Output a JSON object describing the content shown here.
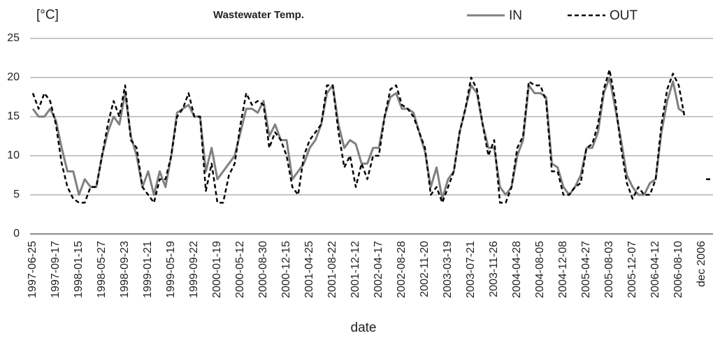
{
  "chart_data": {
    "type": "line",
    "title": "Wastewater Temp.",
    "y_label": "[°C]",
    "x_label": "date",
    "categories": [
      "1997-06-25",
      null,
      null,
      null,
      "1997-09-17",
      null,
      null,
      null,
      "1998-01-15",
      null,
      null,
      null,
      "1998-05-27",
      null,
      null,
      null,
      "1998-09-23",
      null,
      null,
      null,
      "1999-01-21",
      null,
      null,
      null,
      "1999-05-19",
      null,
      null,
      null,
      "1999-09-22",
      null,
      null,
      null,
      "2000-01-19",
      null,
      null,
      null,
      "2000-05-12",
      null,
      null,
      null,
      "2000-08-30",
      null,
      null,
      null,
      "2000-12-15",
      null,
      null,
      null,
      "2001-04-25",
      null,
      null,
      null,
      "2001-08-22",
      null,
      null,
      null,
      "2001-12-12",
      null,
      null,
      null,
      "2002-04-17",
      null,
      null,
      null,
      "2002-08-28",
      null,
      null,
      null,
      "2002-11-20",
      null,
      null,
      null,
      "2003-03-19",
      null,
      null,
      null,
      "2003-07-21",
      null,
      null,
      null,
      "2003-11-26",
      null,
      null,
      null,
      "2004-04-28",
      null,
      null,
      null,
      "2004-08-05",
      null,
      null,
      null,
      "2004-12-08",
      null,
      null,
      null,
      "2005-04-27",
      null,
      null,
      null,
      "2005-08-03",
      null,
      null,
      null,
      "2005-12-07",
      null,
      null,
      null,
      "2006-04-12",
      null,
      null,
      null,
      "2006-08-10",
      null,
      null,
      null,
      "dec 2006"
    ],
    "series": [
      {
        "name": "IN",
        "color": "#808080",
        "dash": false,
        "values": [
          16,
          15,
          15,
          16,
          14.5,
          11,
          8,
          8,
          5,
          7,
          6,
          6,
          10,
          13,
          15,
          14,
          18,
          12.5,
          10,
          6,
          8,
          5,
          8,
          6,
          10,
          15.5,
          16,
          16.5,
          15,
          15,
          8,
          11,
          7,
          8,
          9,
          10,
          13,
          16,
          16,
          15.5,
          17,
          12.5,
          14,
          12,
          12,
          7,
          8,
          9,
          11,
          12,
          14,
          18,
          19,
          14,
          11,
          12,
          11.5,
          9,
          9,
          11,
          11,
          15,
          17.5,
          18,
          16,
          16,
          15.5,
          13,
          10.5,
          6,
          8.5,
          4.5,
          7,
          8,
          13,
          16,
          19,
          18,
          14,
          11,
          11,
          6,
          5,
          6,
          10,
          12,
          19,
          18,
          18,
          17.5,
          9,
          8.5,
          6,
          5,
          6,
          7.5,
          11,
          11,
          13,
          18,
          20,
          16,
          12,
          7.5,
          6,
          5,
          5,
          6.5,
          7,
          13,
          17,
          19.5,
          16,
          15.5,
          null,
          null,
          null
        ]
      },
      {
        "name": "OUT",
        "color": "#000000",
        "dash": true,
        "values": [
          18,
          16,
          18,
          17,
          14,
          9,
          6,
          4.5,
          4,
          4,
          6,
          6,
          10,
          14,
          17,
          15,
          19,
          12,
          11,
          6,
          5,
          4,
          7,
          7,
          10,
          15,
          16,
          18,
          15,
          15,
          5.5,
          9,
          4,
          4,
          7.5,
          9,
          14,
          18,
          16.5,
          17,
          16.5,
          11,
          13,
          12,
          10,
          6,
          5,
          10,
          12,
          13,
          14,
          19,
          19,
          13,
          8.5,
          10,
          6,
          9,
          7,
          10,
          10,
          15,
          18.5,
          19,
          16.5,
          16,
          15,
          13,
          11,
          5,
          6,
          4,
          6,
          8,
          13,
          16,
          20,
          18.5,
          14,
          10,
          12,
          4,
          4,
          6,
          11,
          12.5,
          19.5,
          19,
          19,
          17,
          8,
          8,
          5,
          5,
          6,
          6.5,
          11,
          11.5,
          14,
          18.5,
          21,
          17,
          11,
          6.5,
          4.5,
          6,
          5,
          5,
          7,
          14,
          18.5,
          20.5,
          19,
          15,
          null,
          null,
          7
        ]
      }
    ],
    "ylim": [
      0,
      25
    ],
    "yticks": [
      0,
      5,
      10,
      15,
      20,
      25
    ],
    "grid": true
  }
}
